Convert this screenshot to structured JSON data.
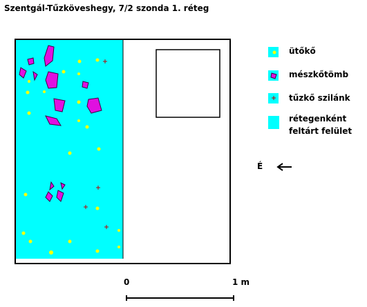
{
  "header": {
    "title": "Szentgál-Tűzköveshegy, 7/2 szonda 1. réteg"
  },
  "legend": [
    {
      "lines": [
        "ütőkő"
      ]
    },
    {
      "lines": [
        "mészkőtömb"
      ]
    },
    {
      "lines": [
        "tűzkő szilánk"
      ]
    },
    {
      "lines": [
        "rétegenként",
        "feltárt felület"
      ]
    }
  ],
  "orientation": {
    "label": "É"
  },
  "scale": {
    "start": "0",
    "end": "1 m"
  }
}
